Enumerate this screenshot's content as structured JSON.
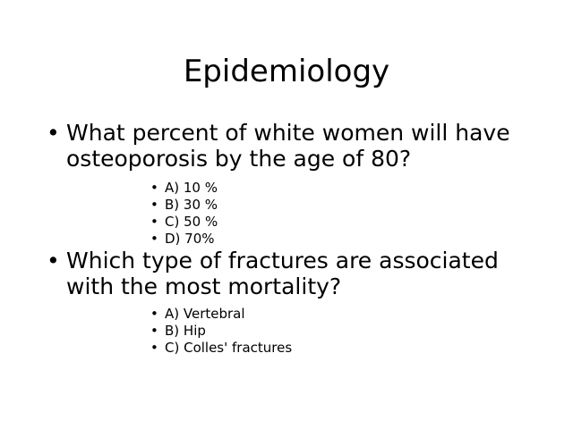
{
  "slide": {
    "title": "Epidemiology",
    "questions": [
      {
        "text": "What percent of white women will have osteoporosis by the age of 80?",
        "options": [
          "A) 10 %",
          "B) 30 %",
          "C) 50 %",
          "D) 70%"
        ]
      },
      {
        "text": "Which type of fractures are associated with the most mortality?",
        "options": [
          "A) Vertebral",
          "B) Hip",
          "C) Colles' fractures"
        ]
      }
    ],
    "bullet_glyph": "•"
  }
}
